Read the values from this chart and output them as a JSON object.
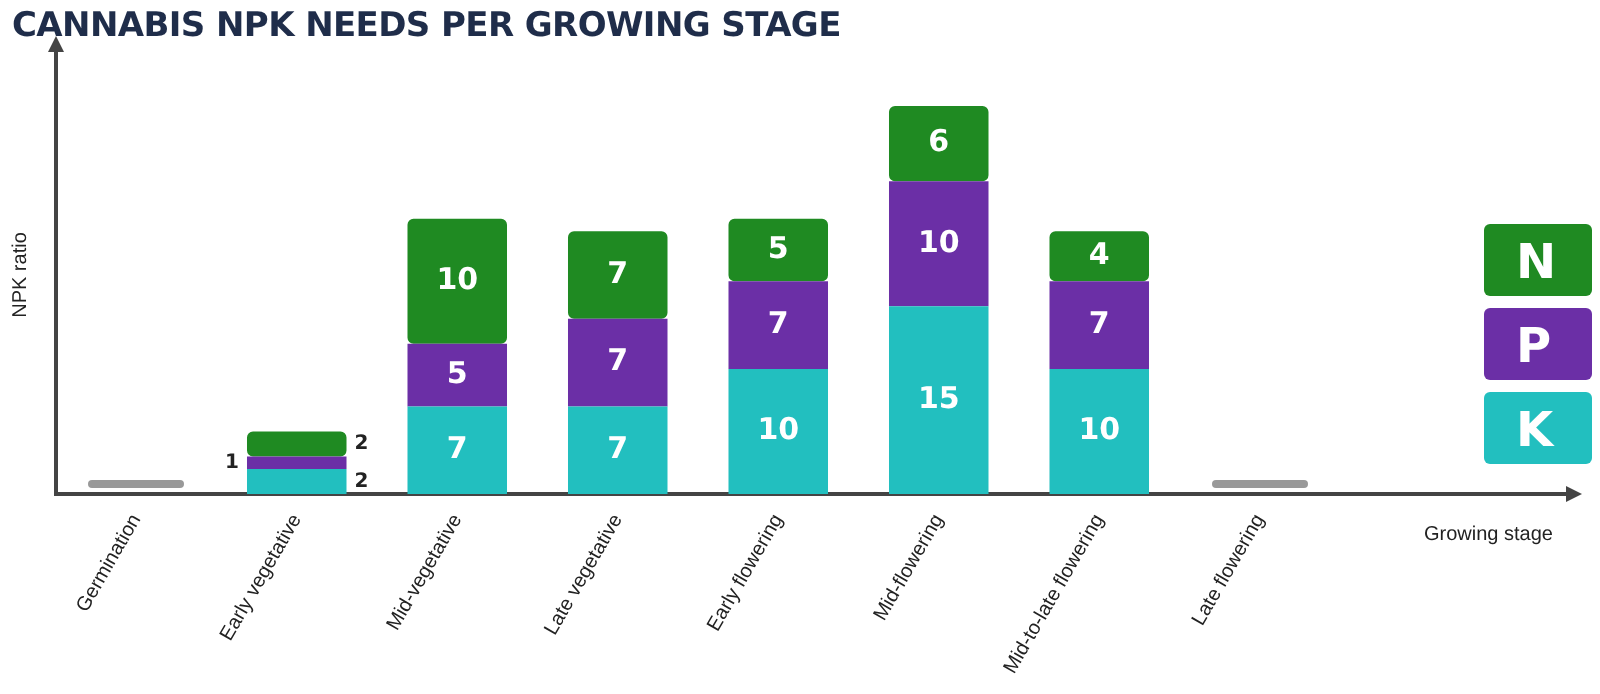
{
  "chart_data": {
    "type": "bar",
    "title": "CANNABIS NPK NEEDS PER GROWING STAGE",
    "xlabel": "Growing stage",
    "ylabel": "NPK ratio",
    "stacked": true,
    "tick_labels": "x",
    "grid": false,
    "legend": "right",
    "categories": [
      "Germination",
      "Early vegetative",
      "Mid-vegetative",
      "Late vegetative",
      "Early flowering",
      "Mid-flowering",
      "Mid-to-late flowering",
      "Late flowering"
    ],
    "series": [
      {
        "name": "K",
        "color": "#22bfbf",
        "values": [
          0,
          2,
          7,
          7,
          10,
          15,
          10,
          0
        ],
        "value_labels": [
          null,
          "2",
          "7",
          "7",
          "10",
          "15",
          "10",
          null
        ]
      },
      {
        "name": "P",
        "color": "#6b2fa6",
        "values": [
          0,
          1,
          5,
          7,
          7,
          10,
          7,
          0
        ],
        "value_labels": [
          null,
          "1",
          "5",
          "7",
          "7",
          "10",
          "7",
          null
        ]
      },
      {
        "name": "N",
        "color": "#1f8a22",
        "values": [
          0,
          2,
          10,
          7,
          5,
          6,
          4,
          0
        ],
        "value_labels": [
          null,
          "2",
          "10",
          "7",
          "5",
          "6",
          "4",
          null
        ]
      }
    ]
  }
}
